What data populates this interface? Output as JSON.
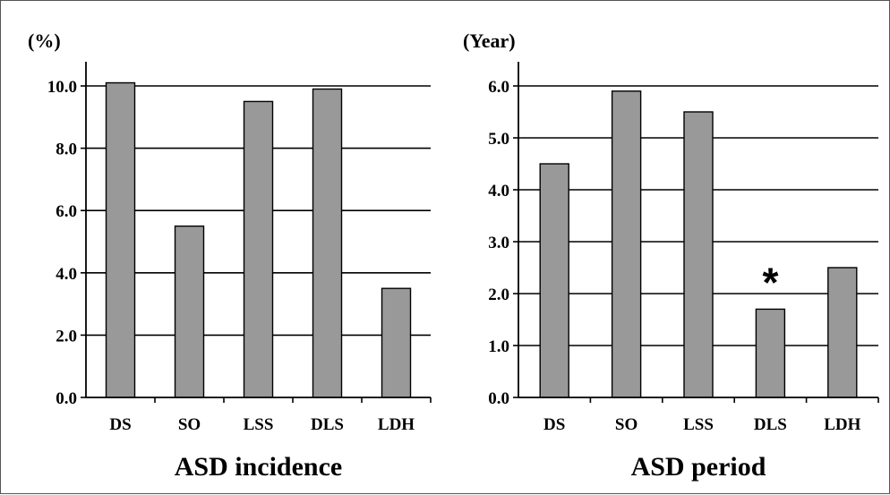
{
  "chart_data": [
    {
      "type": "bar",
      "title": "ASD incidence",
      "ylabel": "(%)",
      "categories": [
        "DS",
        "SO",
        "LSS",
        "DLS",
        "LDH"
      ],
      "values": [
        10.1,
        5.5,
        9.5,
        9.9,
        3.5
      ],
      "ylim": [
        0,
        10
      ],
      "yticks": [
        "0.0",
        "2.0",
        "4.0",
        "6.0",
        "8.0",
        "10.0"
      ],
      "grid": true,
      "bar_color": "#999999",
      "annotations": []
    },
    {
      "type": "bar",
      "title": "ASD period",
      "ylabel": "(Year)",
      "categories": [
        "DS",
        "SO",
        "LSS",
        "DLS",
        "LDH"
      ],
      "values": [
        4.5,
        5.9,
        5.5,
        1.7,
        2.5
      ],
      "ylim": [
        0,
        6
      ],
      "yticks": [
        "0.0",
        "1.0",
        "2.0",
        "3.0",
        "4.0",
        "5.0",
        "6.0"
      ],
      "grid": true,
      "bar_color": "#999999",
      "annotations": [
        {
          "category": "DLS",
          "text": "*"
        }
      ]
    }
  ]
}
